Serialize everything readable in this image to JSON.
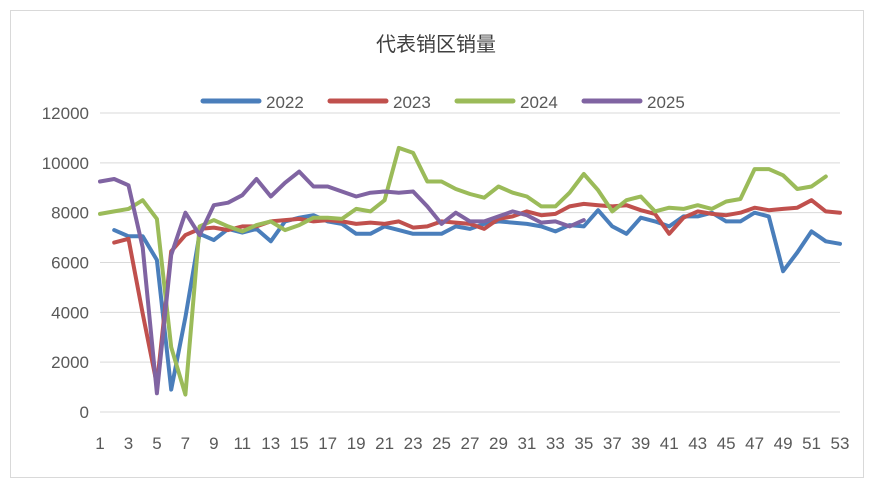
{
  "chart_data": {
    "type": "line",
    "title": "代表销区销量",
    "xlabel": "",
    "ylabel": "",
    "x": [
      1,
      2,
      3,
      4,
      5,
      6,
      7,
      8,
      9,
      10,
      11,
      12,
      13,
      14,
      15,
      16,
      17,
      18,
      19,
      20,
      21,
      22,
      23,
      24,
      25,
      26,
      27,
      28,
      29,
      30,
      31,
      32,
      33,
      34,
      35,
      36,
      37,
      38,
      39,
      40,
      41,
      42,
      43,
      44,
      45,
      46,
      47,
      48,
      49,
      50,
      51,
      52,
      53
    ],
    "x_ticks": [
      "1",
      "3",
      "5",
      "7",
      "9",
      "11",
      "13",
      "15",
      "17",
      "19",
      "21",
      "23",
      "25",
      "27",
      "29",
      "31",
      "33",
      "35",
      "37",
      "39",
      "41",
      "43",
      "45",
      "47",
      "49",
      "51",
      "53"
    ],
    "y_ticks": [
      "0",
      "2000",
      "4000",
      "6000",
      "8000",
      "10000",
      "12000"
    ],
    "ylim": [
      0,
      12000
    ],
    "grid": "horizontal",
    "legend": "top",
    "series": [
      {
        "name": "2022",
        "color": "#4a7ebb",
        "values": [
          null,
          7300,
          7050,
          7050,
          6100,
          900,
          3800,
          7150,
          6900,
          7350,
          7200,
          7350,
          6850,
          7650,
          7800,
          7900,
          7650,
          7550,
          7150,
          7150,
          7450,
          7300,
          7150,
          7150,
          7150,
          7450,
          7350,
          7550,
          7650,
          7600,
          7550,
          7450,
          7250,
          7500,
          7450,
          8100,
          7450,
          7150,
          7800,
          7650,
          7450,
          7850,
          7850,
          8000,
          7650,
          7650,
          8000,
          7850,
          5650,
          6400,
          7250,
          6850,
          6750
        ]
      },
      {
        "name": "2023",
        "color": "#c0504d",
        "values": [
          null,
          6800,
          6950,
          3950,
          1100,
          6450,
          7100,
          7350,
          7400,
          7300,
          7450,
          7450,
          7650,
          7700,
          7750,
          7650,
          7700,
          7650,
          7550,
          7600,
          7550,
          7650,
          7400,
          7450,
          7650,
          7600,
          7550,
          7350,
          7750,
          7850,
          8050,
          7900,
          7950,
          8250,
          8350,
          8300,
          8250,
          8300,
          8100,
          7950,
          7150,
          7800,
          8050,
          7950,
          7900,
          8000,
          8200,
          8100,
          8150,
          8200,
          8500,
          8050,
          8000
        ]
      },
      {
        "name": "2024",
        "color": "#9bbb59",
        "values": [
          7950,
          8050,
          8150,
          8500,
          7750,
          2600,
          700,
          7450,
          7700,
          7450,
          7250,
          7500,
          7650,
          7300,
          7500,
          7800,
          7800,
          7750,
          8150,
          8050,
          8500,
          10600,
          10400,
          9250,
          9250,
          8950,
          8750,
          8600,
          9050,
          8800,
          8650,
          8250,
          8250,
          8800,
          9550,
          8900,
          8050,
          8500,
          8650,
          8050,
          8200,
          8150,
          8300,
          8150,
          8450,
          8550,
          9750,
          9750,
          9500,
          8950,
          9050,
          9450,
          null
        ]
      },
      {
        "name": "2025",
        "color": "#8064a2",
        "values": [
          9250,
          9350,
          9100,
          6600,
          750,
          6300,
          8000,
          7100,
          8300,
          8400,
          8700,
          9350,
          8650,
          9200,
          9650,
          9050,
          9050,
          8850,
          8650,
          8800,
          8850,
          8800,
          8850,
          8250,
          7550,
          8000,
          7650,
          7650,
          7850,
          8050,
          7900,
          7600,
          7650,
          7450,
          7700,
          null,
          null,
          null,
          null,
          null,
          null,
          null,
          null,
          null,
          null,
          null,
          null,
          null,
          null,
          null,
          null,
          null,
          null
        ]
      }
    ]
  }
}
